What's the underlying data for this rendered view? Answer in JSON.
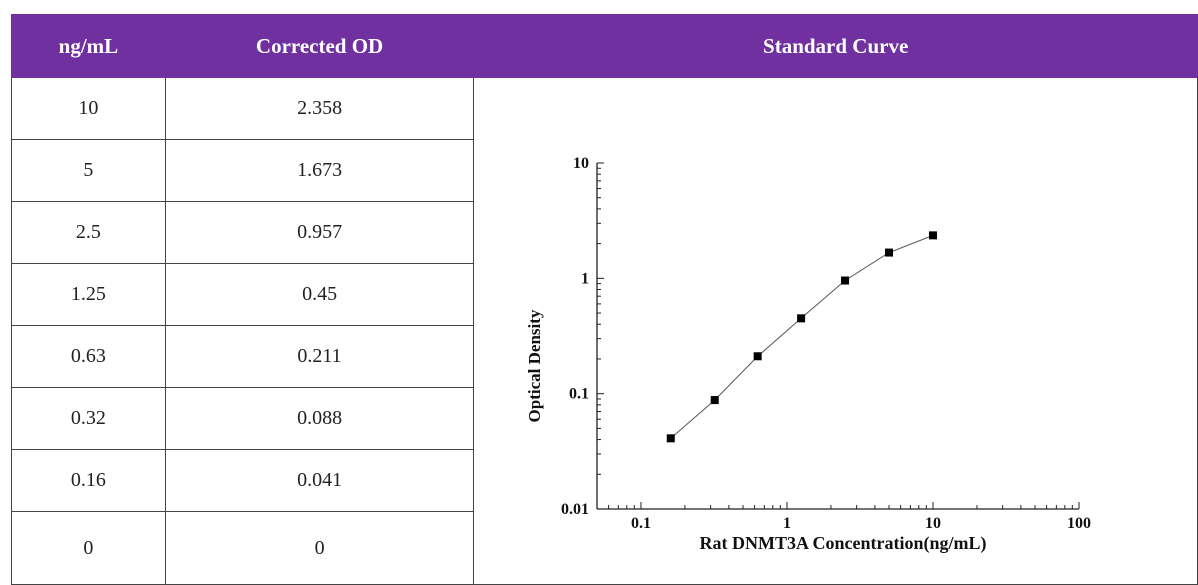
{
  "table": {
    "headers": [
      "ng/mL",
      "Corrected OD",
      "Standard Curve"
    ],
    "rows": [
      {
        "conc": "10",
        "od": "2.358"
      },
      {
        "conc": "5",
        "od": "1.673"
      },
      {
        "conc": "2.5",
        "od": "0.957"
      },
      {
        "conc": "1.25",
        "od": "0.45"
      },
      {
        "conc": "0.63",
        "od": "0.211"
      },
      {
        "conc": "0.32",
        "od": "0.088"
      },
      {
        "conc": "0.16",
        "od": "0.041"
      },
      {
        "conc": "0",
        "od": "0"
      }
    ]
  },
  "colors": {
    "header_bg": "#7030a0",
    "header_text": "#ffffff",
    "marker": "#000000",
    "line": "#555555"
  },
  "chart_data": {
    "type": "scatter",
    "xscale": "log",
    "yscale": "log",
    "xlabel": "Rat DNMT3A Concentration(ng/mL)",
    "ylabel": "Optical Density",
    "xlim": [
      0.05,
      100
    ],
    "ylim": [
      0.01,
      10
    ],
    "x_ticks": [
      "0.1",
      "1",
      "10",
      "100"
    ],
    "y_ticks": [
      "0.01",
      "0.1",
      "1",
      "10"
    ],
    "x_tick_values": [
      0.1,
      1,
      10,
      100
    ],
    "y_tick_values": [
      0.01,
      0.1,
      1,
      10
    ],
    "x": [
      0.16,
      0.32,
      0.63,
      1.25,
      2.5,
      5,
      10
    ],
    "y": [
      0.041,
      0.088,
      0.211,
      0.45,
      0.957,
      1.673,
      2.358
    ],
    "grid": false,
    "legend": "none"
  }
}
